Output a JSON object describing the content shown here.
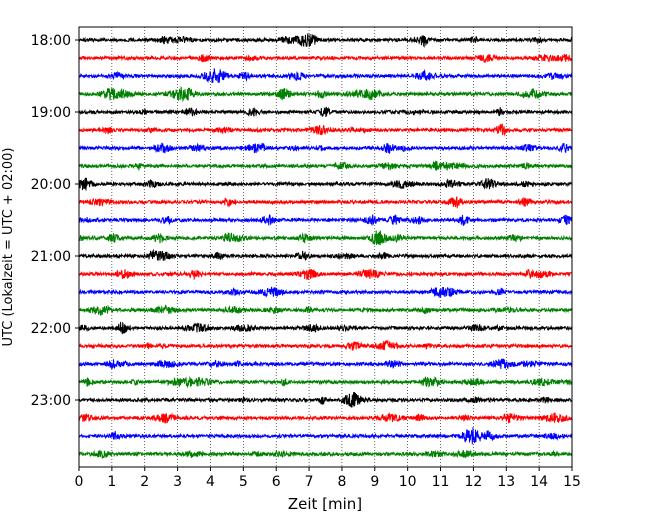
{
  "chart_data": {
    "type": "line",
    "subtype": "seismic-helicorder",
    "xlabel": "Zeit  [min]",
    "ylabel": "UTC (Lokalzeit = UTC + 02:00)",
    "xlim": [
      0,
      15
    ],
    "x_ticks": [
      "0",
      "1",
      "2",
      "3",
      "4",
      "5",
      "6",
      "7",
      "8",
      "9",
      "10",
      "11",
      "12",
      "13",
      "14",
      "15"
    ],
    "y_tick_labels": [
      "18:00",
      "19:00",
      "20:00",
      "21:00",
      "22:00",
      "23:00"
    ],
    "trace_start_minutes": [
      0,
      15,
      30,
      45,
      60,
      75,
      90,
      105,
      120,
      135,
      150,
      165,
      180,
      195,
      210,
      225,
      240,
      255,
      270,
      285,
      300,
      315,
      330,
      345
    ],
    "trace_colors": [
      "#000000",
      "#ff0000",
      "#0000ff",
      "#008000"
    ],
    "grid": "vertical dotted",
    "legend": "none"
  }
}
